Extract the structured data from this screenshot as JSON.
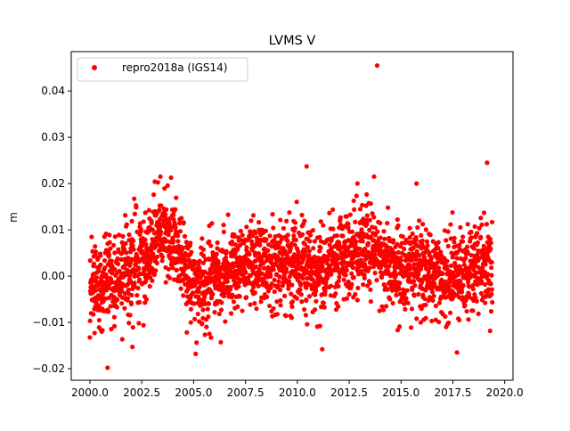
{
  "chart_data": {
    "type": "scatter",
    "title": "LVMS V",
    "xlabel": "",
    "ylabel": "m",
    "xlim": [
      1999.1,
      2020.4
    ],
    "ylim": [
      -0.0225,
      0.0485
    ],
    "x_ticks": [
      2000.0,
      2002.5,
      2005.0,
      2007.5,
      2010.0,
      2012.5,
      2015.0,
      2017.5,
      2020.0
    ],
    "x_tick_labels": [
      "2000.0",
      "2002.5",
      "2005.0",
      "2007.5",
      "2010.0",
      "2012.5",
      "2015.0",
      "2017.5",
      "2020.0"
    ],
    "y_ticks": [
      -0.02,
      -0.01,
      0.0,
      0.01,
      0.02,
      0.03,
      0.04
    ],
    "y_tick_labels": [
      "−0.02",
      "−0.01",
      "0.00",
      "0.01",
      "0.02",
      "0.03",
      "0.04"
    ],
    "grid": false,
    "legend": {
      "location": "top-left",
      "entries": [
        "repro2018a (IGS14)"
      ]
    },
    "series": [
      {
        "name": "repro2018a (IGS14)",
        "color": "#ff0000",
        "marker": "circle",
        "time_range": [
          2000.0,
          2019.4
        ],
        "trend_points": [
          [
            2000.0,
            0.0
          ],
          [
            2000.5,
            -0.002
          ],
          [
            2001.0,
            -0.001
          ],
          [
            2001.5,
            0.0
          ],
          [
            2002.0,
            0.002
          ],
          [
            2002.5,
            0.004
          ],
          [
            2003.0,
            0.007
          ],
          [
            2003.5,
            0.009
          ],
          [
            2004.0,
            0.008
          ],
          [
            2004.5,
            0.004
          ],
          [
            2005.0,
            -0.003
          ],
          [
            2005.5,
            -0.002
          ],
          [
            2006.0,
            -0.001
          ],
          [
            2006.5,
            0.001
          ],
          [
            2007.0,
            0.002
          ],
          [
            2007.5,
            0.002
          ],
          [
            2008.0,
            0.003
          ],
          [
            2008.5,
            0.003
          ],
          [
            2009.0,
            0.003
          ],
          [
            2009.5,
            0.003
          ],
          [
            2010.0,
            0.003
          ],
          [
            2010.5,
            0.002
          ],
          [
            2011.0,
            0.001
          ],
          [
            2011.5,
            0.002
          ],
          [
            2012.0,
            0.004
          ],
          [
            2012.5,
            0.005
          ],
          [
            2013.0,
            0.006
          ],
          [
            2013.5,
            0.007
          ],
          [
            2014.0,
            0.004
          ],
          [
            2014.5,
            0.002
          ],
          [
            2015.0,
            0.001
          ],
          [
            2015.5,
            0.002
          ],
          [
            2016.0,
            0.002
          ],
          [
            2016.5,
            0.001
          ],
          [
            2017.0,
            0.0
          ],
          [
            2017.5,
            -0.001
          ],
          [
            2018.0,
            0.0
          ],
          [
            2018.5,
            0.002
          ],
          [
            2019.0,
            0.003
          ],
          [
            2019.4,
            0.0
          ]
        ],
        "noise_std": 0.0045,
        "outliers": [
          [
            2013.85,
            0.0455
          ],
          [
            2019.15,
            0.0245
          ],
          [
            2010.45,
            0.0237
          ],
          [
            2000.85,
            -0.0198
          ],
          [
            2005.1,
            -0.0168
          ],
          [
            2017.7,
            -0.0165
          ],
          [
            2011.2,
            -0.0158
          ],
          [
            2003.4,
            0.0215
          ],
          [
            2013.7,
            0.0215
          ],
          [
            2002.05,
            -0.0153
          ],
          [
            2015.75,
            0.02
          ],
          [
            2012.9,
            0.02
          ]
        ]
      }
    ]
  }
}
